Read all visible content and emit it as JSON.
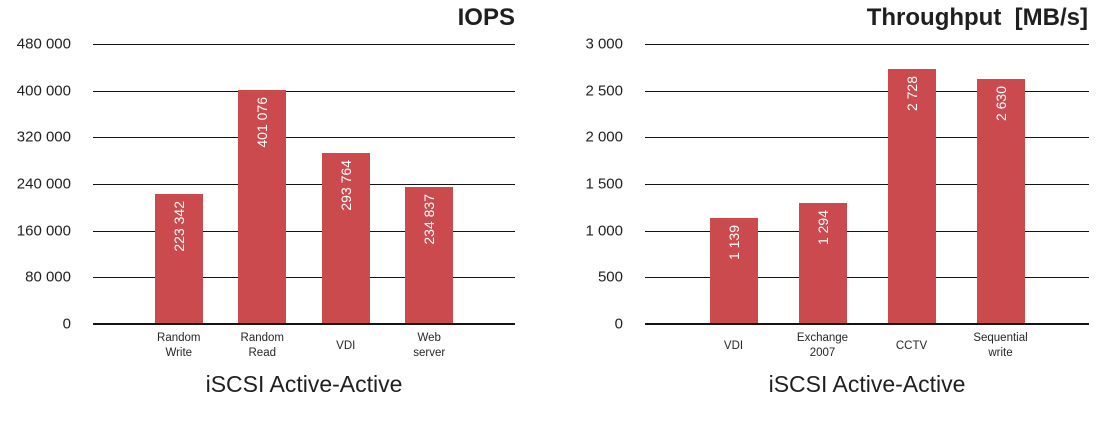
{
  "page": {
    "background": "#ffffff",
    "text_color": "#1f1f1f",
    "grid_color": "#141414"
  },
  "chart_data": [
    {
      "type": "bar",
      "title": "IOPS",
      "categories": [
        "Random\nWrite",
        "Random\nRead",
        "VDI",
        "Web\nserver"
      ],
      "values": [
        223342,
        401076,
        293764,
        234837
      ],
      "value_labels": [
        "223 342",
        "401 076",
        "293 764",
        "234 837"
      ],
      "xlabel": "iSCSI Active-Active",
      "ylabel": "",
      "ylim": [
        0,
        480000
      ],
      "yticks": [
        {
          "value": 0,
          "label": "0"
        },
        {
          "value": 80000,
          "label": "80 000"
        },
        {
          "value": 160000,
          "label": "160 000"
        },
        {
          "value": 240000,
          "label": "240 000"
        },
        {
          "value": 320000,
          "label": "320 000"
        },
        {
          "value": 400000,
          "label": "400 000"
        },
        {
          "value": 480000,
          "label": "480 000"
        }
      ],
      "bar_color": "#CA4A4D",
      "value_label_color": "#ffffff",
      "grid": true,
      "legend": false
    },
    {
      "type": "bar",
      "title": "Throughput  [MB/s]",
      "categories": [
        "VDI",
        "Exchange\n2007",
        "CCTV",
        "Sequential\nwrite"
      ],
      "values": [
        1139,
        1294,
        2728,
        2630
      ],
      "value_labels": [
        "1 139",
        "1 294",
        "2 728",
        "2 630"
      ],
      "xlabel": "iSCSI Active-Active",
      "ylabel": "",
      "ylim": [
        0,
        3000
      ],
      "yticks": [
        {
          "value": 0,
          "label": "0"
        },
        {
          "value": 500,
          "label": "500"
        },
        {
          "value": 1000,
          "label": "1 000"
        },
        {
          "value": 1500,
          "label": "1 500"
        },
        {
          "value": 2000,
          "label": "2 000"
        },
        {
          "value": 2500,
          "label": "2 500"
        },
        {
          "value": 3000,
          "label": "3 000"
        }
      ],
      "bar_color": "#CA4A4D",
      "value_label_color": "#ffffff",
      "grid": true,
      "legend": false
    }
  ]
}
